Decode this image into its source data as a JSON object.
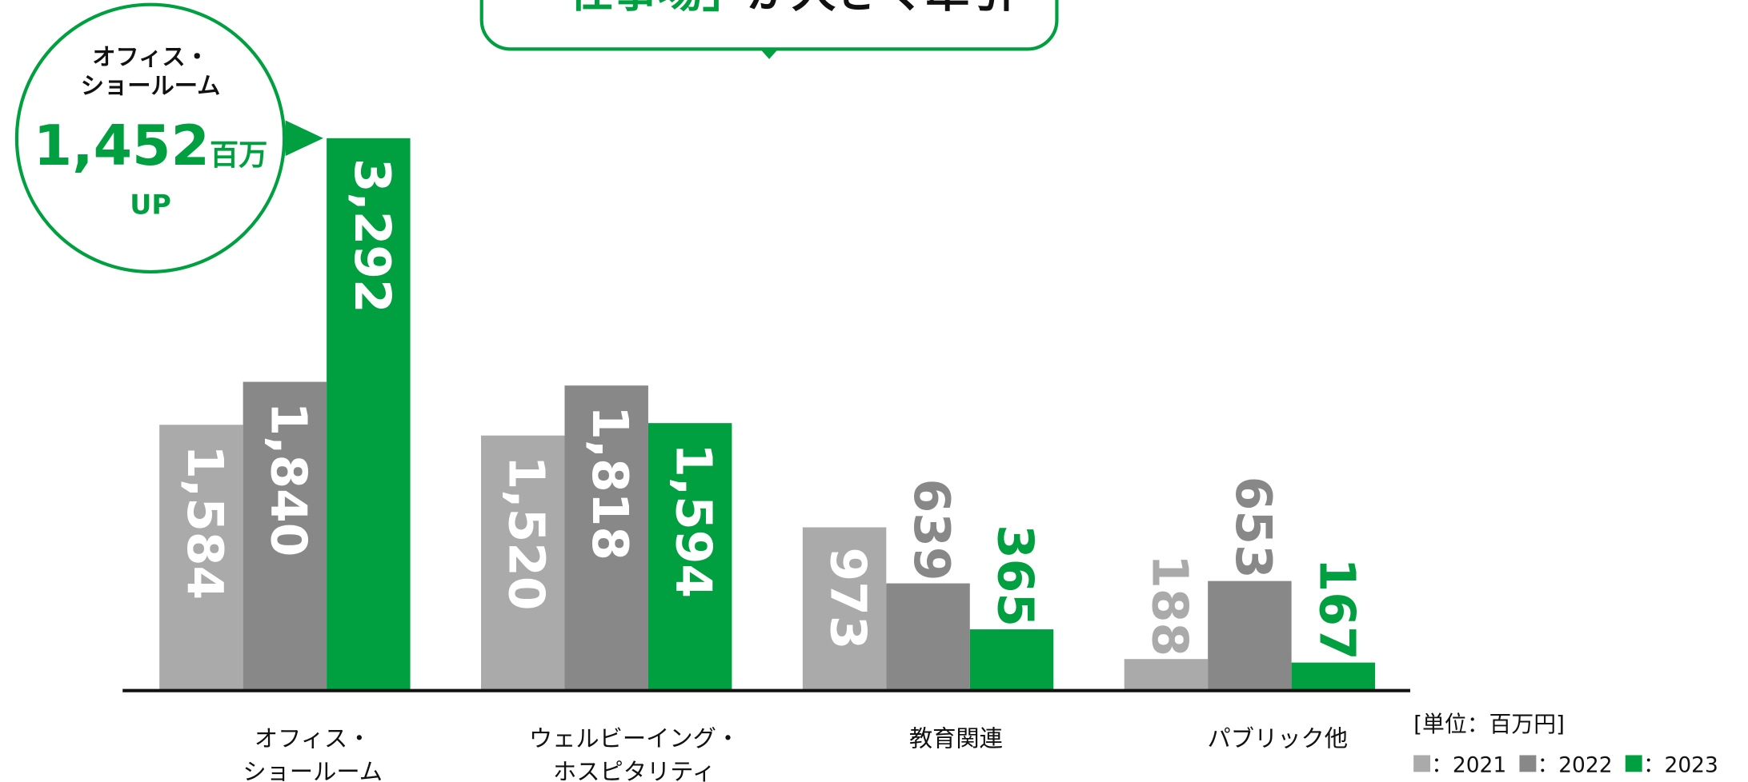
{
  "chart_data": {
    "type": "bar",
    "headline": {
      "highlight": "「仕事場」",
      "rest": "が大きく牽引"
    },
    "callout": {
      "category": "オフィス・\nショールーム",
      "value": "1,452",
      "unit": "百万",
      "note": "UP"
    },
    "unit_label": "[単位：百万円]",
    "categories": [
      "オフィス・\nショールーム",
      "ウェルビーイング・\nホスピタリティ",
      "教育関連",
      "パブリック他"
    ],
    "series": [
      {
        "name": "：2021",
        "color": "#aaaaaa",
        "values": [
          1584,
          1520,
          973,
          188
        ],
        "value_labels": [
          "1,584",
          "1,520",
          "973",
          "188"
        ]
      },
      {
        "name": "：2022",
        "color": "#888888",
        "values": [
          1840,
          1818,
          639,
          653
        ],
        "value_labels": [
          "1,840",
          "1,818",
          "639",
          "653"
        ]
      },
      {
        "name": "：2023",
        "color": "#00a040",
        "values": [
          3292,
          1594,
          365,
          167
        ],
        "value_labels": [
          "3,292",
          "1,594",
          "365",
          "167"
        ]
      }
    ],
    "legend": "bottom-right"
  }
}
